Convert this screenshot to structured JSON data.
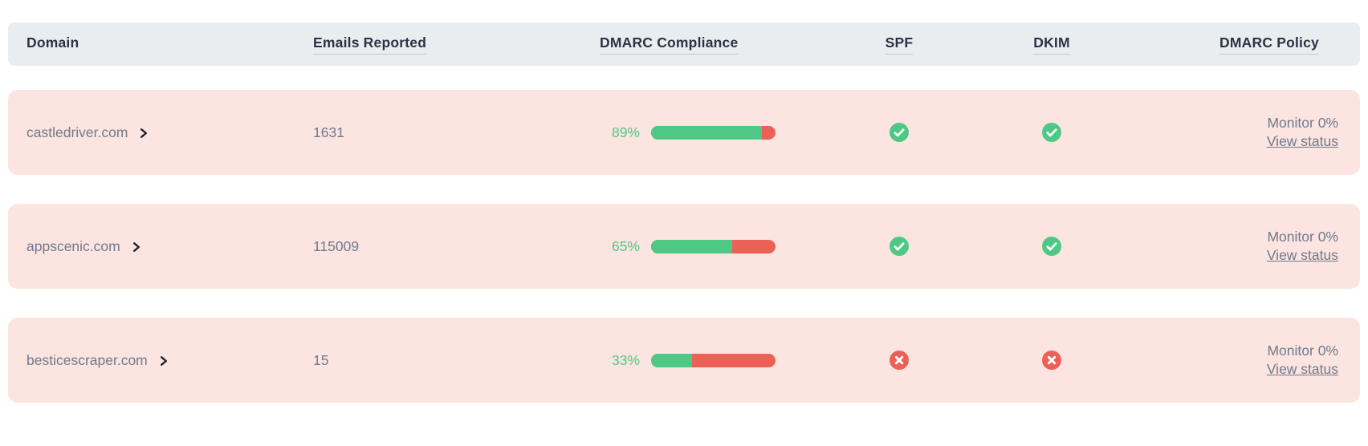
{
  "table": {
    "columns": [
      {
        "label": "Domain",
        "sortable": false
      },
      {
        "label": "Emails Reported",
        "sortable": true
      },
      {
        "label": "DMARC Compliance",
        "sortable": true
      },
      {
        "label": "SPF",
        "sortable": true
      },
      {
        "label": "DKIM",
        "sortable": true
      },
      {
        "label": "DMARC Policy",
        "sortable": true
      }
    ],
    "rows": [
      {
        "domain": "castledriver.com",
        "emails_reported": "1631",
        "dmarc_compliance_percent": 89,
        "dmarc_compliance_label": "89%",
        "spf_status": "pass",
        "dkim_status": "pass",
        "dmarc_policy_mode": "Monitor 0%",
        "dmarc_policy_link": "View status"
      },
      {
        "domain": "appscenic.com",
        "emails_reported": "115009",
        "dmarc_compliance_percent": 65,
        "dmarc_compliance_label": "65%",
        "spf_status": "pass",
        "dkim_status": "pass",
        "dmarc_policy_mode": "Monitor 0%",
        "dmarc_policy_link": "View status"
      },
      {
        "domain": "besticescraper.com",
        "emails_reported": "15",
        "dmarc_compliance_percent": 33,
        "dmarc_compliance_label": "33%",
        "spf_status": "fail",
        "dkim_status": "fail",
        "dmarc_policy_mode": "Monitor 0%",
        "dmarc_policy_link": "View status"
      }
    ]
  },
  "colors": {
    "header_bg": "#e9edf0",
    "header_text": "#2b3245",
    "row_bg": "#fce4e0",
    "body_text": "#6e7b8c",
    "green": "#4ec985",
    "red": "#ec6156",
    "chevron": "#1c2333"
  }
}
